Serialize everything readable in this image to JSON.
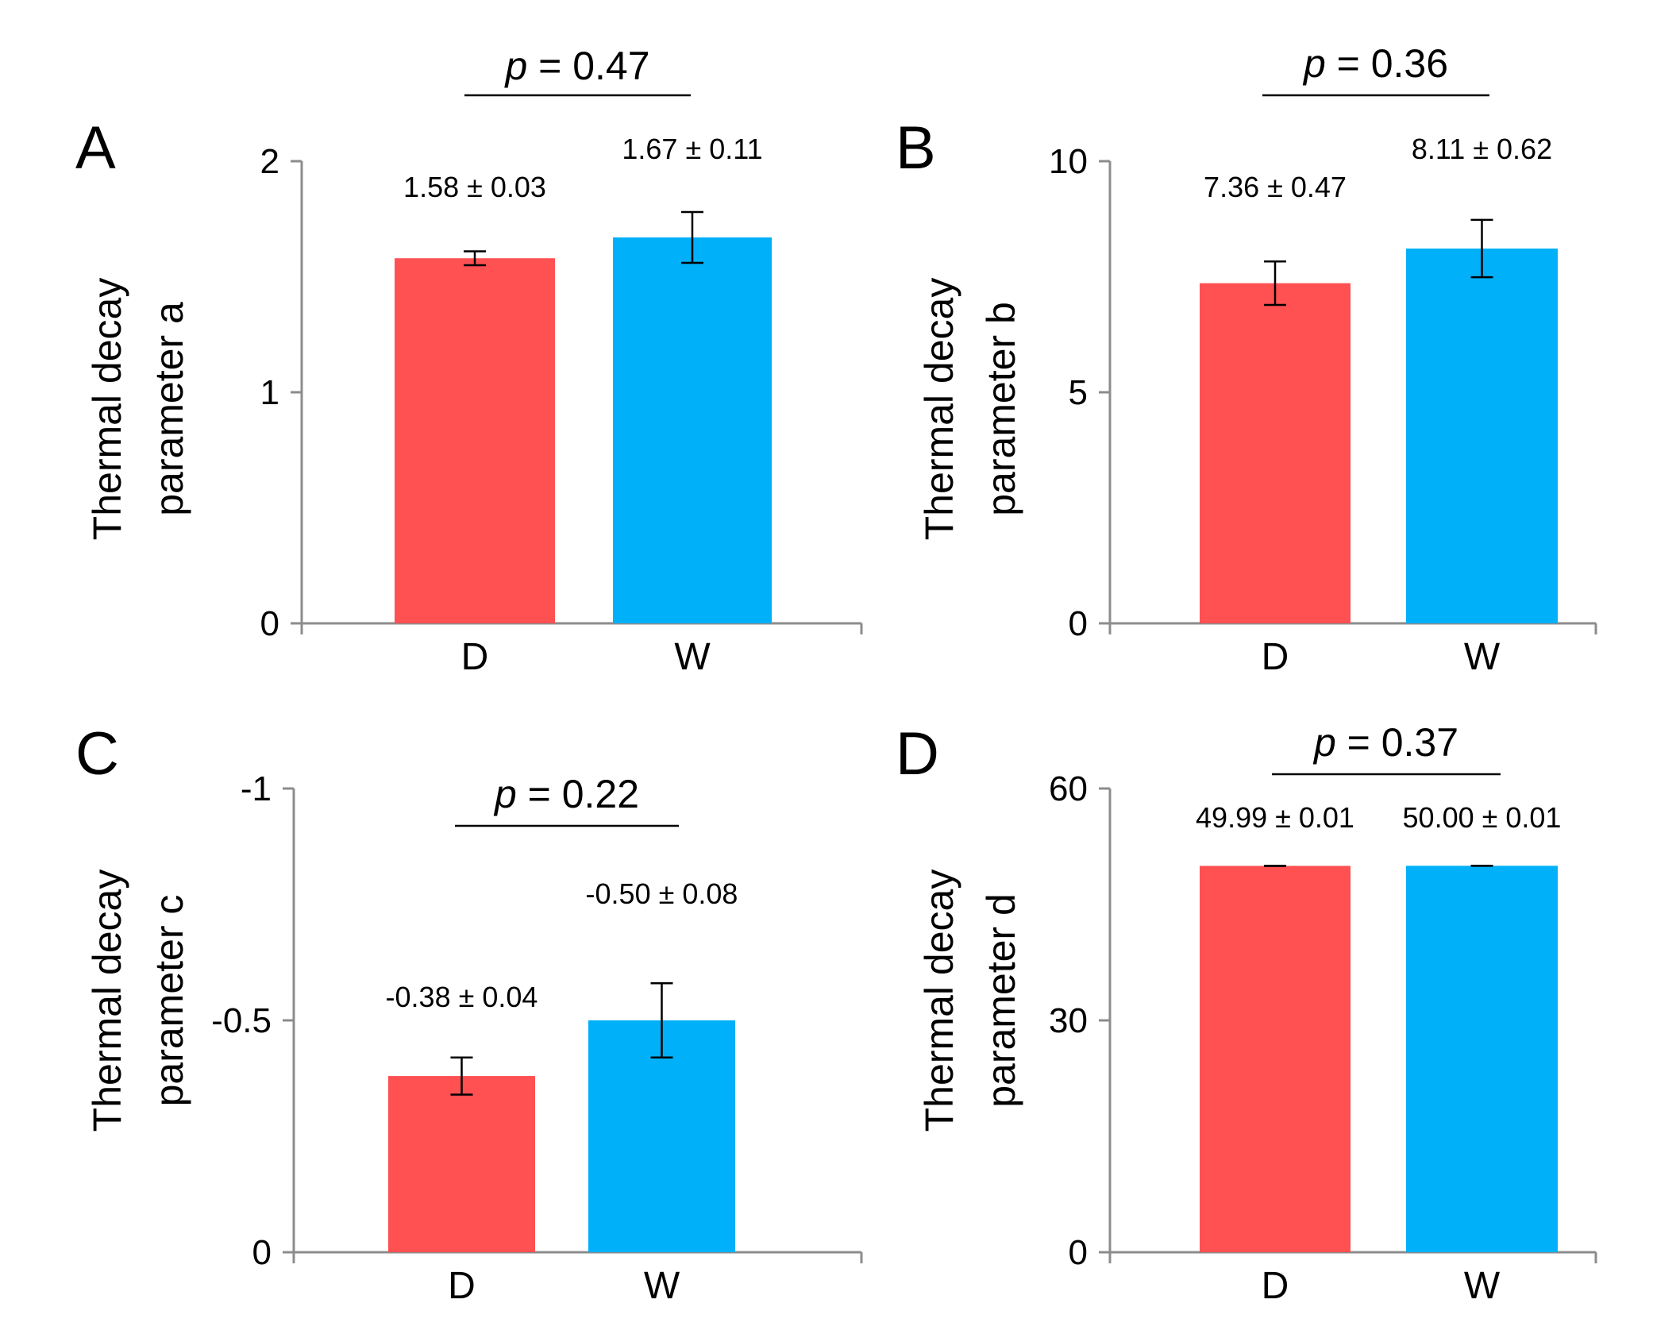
{
  "colors": {
    "D": "#ff5052",
    "W": "#00b0f8",
    "axis": "#8c8c8c",
    "bracket": "#000000"
  },
  "chart_data": [
    {
      "type": "bar",
      "panel": "A",
      "categories": [
        "D",
        "W"
      ],
      "values": [
        1.58,
        1.67
      ],
      "errors": [
        0.03,
        0.11
      ],
      "value_labels": [
        "1.58 ± 0.03",
        "1.67 ± 0.11"
      ],
      "ylabel_lines": [
        "Thermal decay",
        "parameter a"
      ],
      "ylim": [
        0,
        2
      ],
      "yticks": [
        0,
        1,
        2
      ],
      "ytick_labels": [
        "0",
        "1",
        "2"
      ],
      "inverted": false,
      "p_prefix": "p",
      "p_value": "= 0.47"
    },
    {
      "type": "bar",
      "panel": "B",
      "categories": [
        "D",
        "W"
      ],
      "values": [
        7.36,
        8.11
      ],
      "errors": [
        0.47,
        0.62
      ],
      "value_labels": [
        "7.36 ± 0.47",
        "8.11 ± 0.62"
      ],
      "ylabel_lines": [
        "Thermal decay",
        "parameter b"
      ],
      "ylim": [
        0,
        10
      ],
      "yticks": [
        0,
        5,
        10
      ],
      "ytick_labels": [
        "0",
        "5",
        "10"
      ],
      "inverted": false,
      "p_prefix": "p",
      "p_value": "= 0.36"
    },
    {
      "type": "bar",
      "panel": "C",
      "categories": [
        "D",
        "W"
      ],
      "values": [
        -0.38,
        -0.5
      ],
      "errors": [
        0.04,
        0.08
      ],
      "value_labels": [
        "-0.38 ± 0.04",
        "-0.50 ± 0.08"
      ],
      "ylabel_lines": [
        "Thermal decay",
        "parameter c"
      ],
      "ylim": [
        0,
        -1
      ],
      "yticks": [
        0,
        -0.5,
        -1
      ],
      "ytick_labels": [
        "0",
        "-0.5",
        "-1"
      ],
      "inverted": true,
      "p_prefix": "p",
      "p_value": "= 0.22"
    },
    {
      "type": "bar",
      "panel": "D",
      "categories": [
        "D",
        "W"
      ],
      "values": [
        49.99,
        50.0
      ],
      "errors": [
        0.01,
        0.01
      ],
      "value_labels": [
        "49.99 ± 0.01",
        "50.00 ± 0.01"
      ],
      "ylabel_lines": [
        "Thermal decay",
        "parameter d"
      ],
      "ylim": [
        0,
        60
      ],
      "yticks": [
        0,
        30,
        60
      ],
      "ytick_labels": [
        "0",
        "30",
        "60"
      ],
      "inverted": false,
      "p_prefix": "p",
      "p_value": "= 0.37"
    }
  ]
}
